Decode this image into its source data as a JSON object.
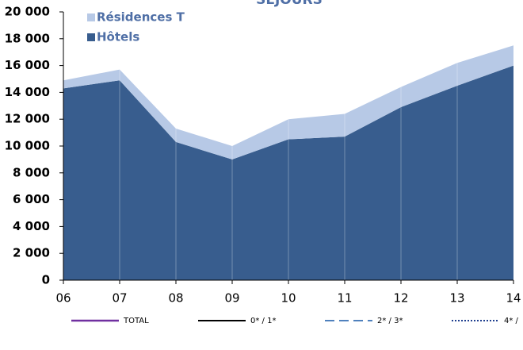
{
  "chart_data": {
    "type": "stacked_area",
    "title": "SEJOURS",
    "categories": [
      "06",
      "07",
      "08",
      "09",
      "10",
      "11",
      "12",
      "13",
      "14"
    ],
    "series": [
      {
        "name": "Hôtels",
        "color": "#385d8e",
        "values": [
          14300,
          14900,
          10300,
          9000,
          10500,
          10700,
          12900,
          14500,
          16000
        ]
      },
      {
        "name": "Résidences T",
        "color": "#b7c9e6",
        "values": [
          600,
          800,
          1000,
          1000,
          1500,
          1700,
          1500,
          1700,
          1500
        ]
      }
    ],
    "ylim": [
      0,
      20000
    ],
    "yticks": [
      0,
      {
        "value": 2000,
        "label": "2 000"
      },
      {
        "value": 4000,
        "label": "4 000"
      },
      {
        "value": 6000,
        "label": "6 000"
      },
      {
        "value": 8000,
        "label": "8 000"
      },
      {
        "value": 10000,
        "label": "10 000"
      },
      {
        "value": 12000,
        "label": "12 000"
      },
      {
        "value": 14000,
        "label": "14 000"
      },
      {
        "value": 16000,
        "label": "16 000"
      },
      {
        "value": 18000,
        "label": "18 000"
      },
      {
        "value": 20000,
        "label": "20 000"
      }
    ],
    "legend": "top-left",
    "line_legend": [
      {
        "name": "TOTAL",
        "color": "#7030a0",
        "dash": "solid"
      },
      {
        "name": "0* / 1*",
        "color": "#000000",
        "dash": "solid"
      },
      {
        "name": "2* / 3*",
        "color": "#4f81bd",
        "dash": "dashed"
      },
      {
        "name": "4* /",
        "color": "#1f3f8f",
        "dash": "dotted"
      }
    ]
  }
}
